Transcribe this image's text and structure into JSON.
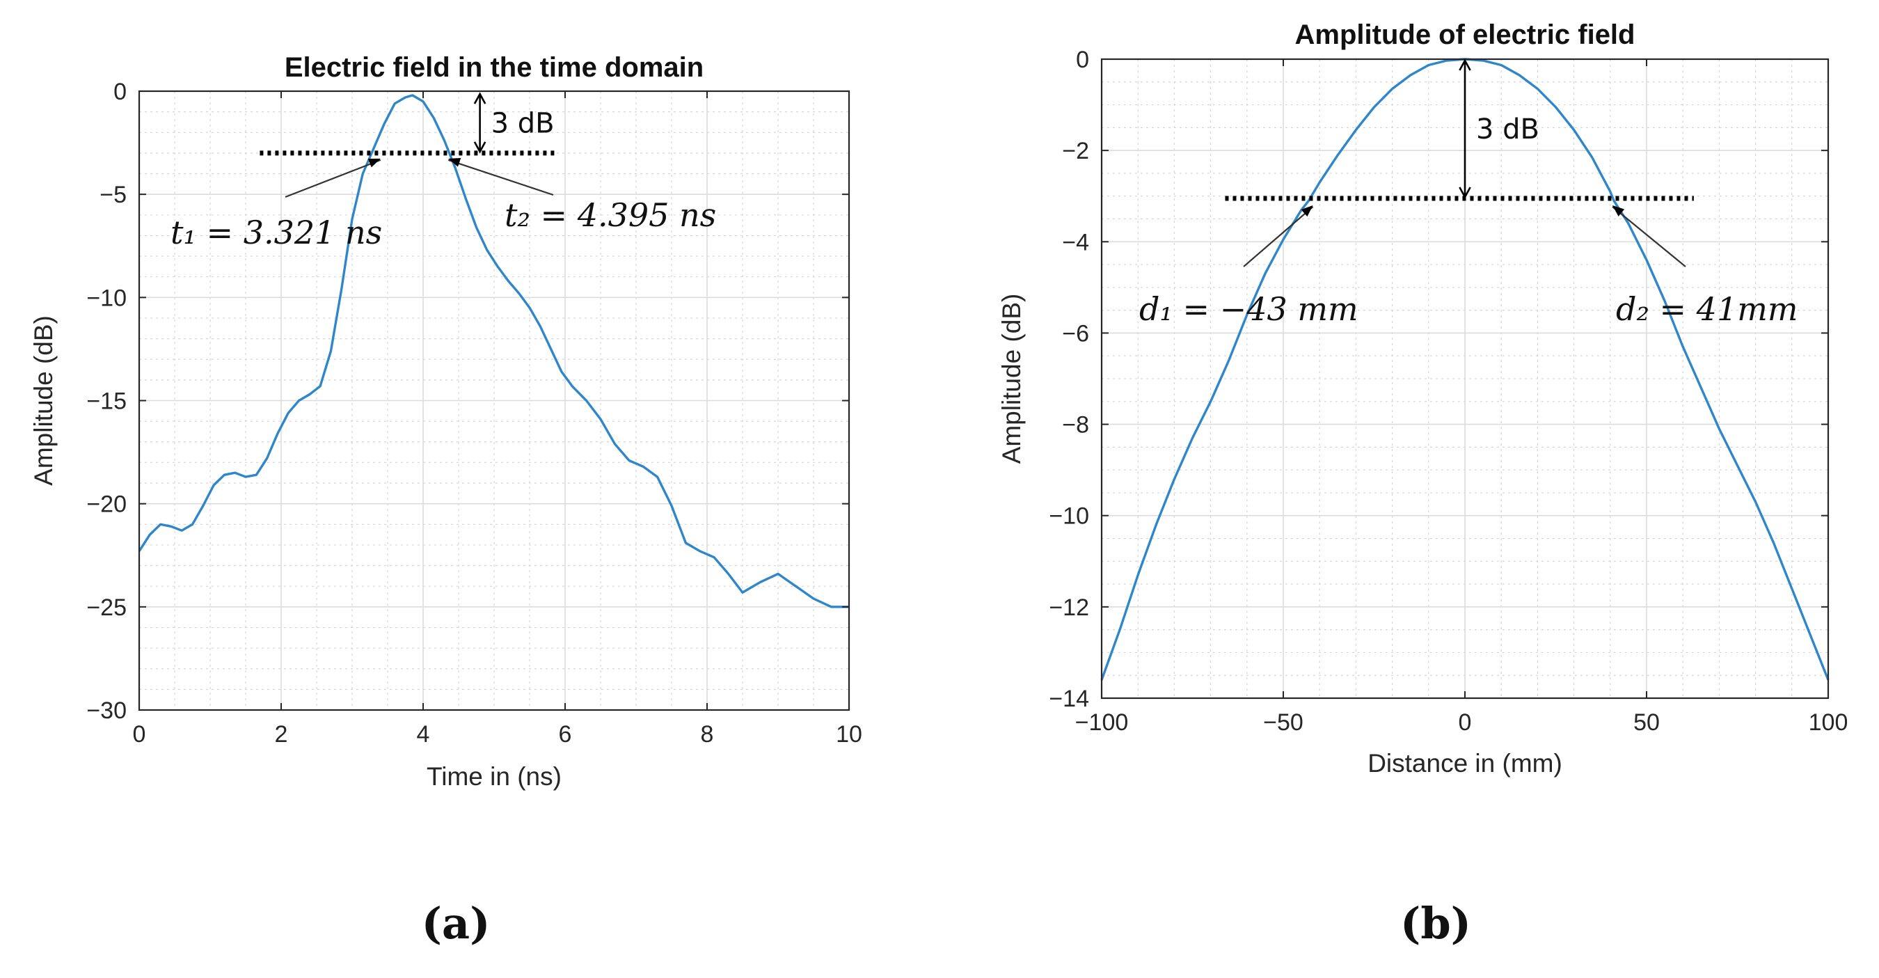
{
  "chart_data": [
    {
      "type": "line",
      "title": "Electric field in the time domain",
      "xlabel": "Time in (ns)",
      "ylabel": "Amplitude (dB)",
      "xlim": [
        0,
        10
      ],
      "ylim": [
        -30,
        0
      ],
      "xticks": [
        0,
        2,
        4,
        6,
        8,
        10
      ],
      "yticks": [
        0,
        -5,
        -10,
        -15,
        -20,
        -25,
        -30
      ],
      "xtick_labels": [
        "0",
        "2",
        "4",
        "6",
        "8",
        "10"
      ],
      "ytick_labels": [
        "0",
        "−5",
        "−10",
        "−15",
        "−20",
        "−25",
        "−30"
      ],
      "grid": true,
      "series": [
        {
          "name": "Electric field",
          "color": "#2f86c9",
          "x": [
            0,
            0.15,
            0.3,
            0.45,
            0.6,
            0.75,
            0.9,
            1.05,
            1.2,
            1.35,
            1.5,
            1.65,
            1.8,
            1.95,
            2.1,
            2.25,
            2.4,
            2.55,
            2.7,
            2.85,
            3.0,
            3.15,
            3.3,
            3.45,
            3.6,
            3.75,
            3.85,
            4.0,
            4.15,
            4.3,
            4.45,
            4.6,
            4.75,
            4.9,
            5.05,
            5.2,
            5.35,
            5.5,
            5.65,
            5.8,
            5.95,
            6.1,
            6.3,
            6.5,
            6.7,
            6.9,
            7.1,
            7.3,
            7.5,
            7.7,
            7.9,
            8.1,
            8.3,
            8.5,
            8.75,
            9.0,
            9.25,
            9.5,
            9.75,
            10
          ],
          "y": [
            -22.3,
            -21.5,
            -21.0,
            -21.1,
            -21.3,
            -21.0,
            -20.1,
            -19.1,
            -18.6,
            -18.5,
            -18.7,
            -18.6,
            -17.8,
            -16.6,
            -15.6,
            -15.0,
            -14.7,
            -14.3,
            -12.6,
            -9.6,
            -6.2,
            -4.0,
            -2.8,
            -1.6,
            -0.6,
            -0.3,
            -0.2,
            -0.5,
            -1.3,
            -2.4,
            -3.7,
            -5.2,
            -6.6,
            -7.7,
            -8.5,
            -9.2,
            -9.8,
            -10.5,
            -11.4,
            -12.5,
            -13.6,
            -14.3,
            -15.0,
            -15.9,
            -17.1,
            -17.9,
            -18.2,
            -18.7,
            -20.1,
            -21.9,
            -22.3,
            -22.6,
            -23.4,
            -24.3,
            -23.8,
            -23.4,
            -24.0,
            -24.6,
            -25.0,
            -25.0
          ]
        }
      ],
      "annotations": {
        "db_label": "3 dB",
        "level_db": -3,
        "level_x": [
          1.7,
          5.85
        ],
        "arrow_x": 4.8,
        "arrow_y": [
          0,
          -3
        ],
        "t1_label": "t₁ = 3.321 ns",
        "t2_label": "t₂ = 4.395 ns",
        "t1_x": 3.321,
        "t2_x": 4.395
      },
      "panel_label": "(a)"
    },
    {
      "type": "line",
      "title": "Amplitude of electric field",
      "xlabel": "Distance in (mm)",
      "ylabel": "Amplitude (dB)",
      "xlim": [
        -100,
        100
      ],
      "ylim": [
        -14,
        0
      ],
      "xticks": [
        -100,
        -50,
        0,
        50,
        100
      ],
      "yticks": [
        0,
        -2,
        -4,
        -6,
        -8,
        -10,
        -12,
        -14
      ],
      "xtick_labels": [
        "−100",
        "−50",
        "0",
        "50",
        "100"
      ],
      "ytick_labels": [
        "0",
        "−2",
        "−4",
        "−6",
        "−8",
        "−10",
        "−12",
        "−14"
      ],
      "grid": true,
      "series": [
        {
          "name": "Amplitude",
          "color": "#2f86c9",
          "x": [
            -100,
            -95,
            -90,
            -85,
            -80,
            -75,
            -70,
            -65,
            -60,
            -55,
            -50,
            -45,
            -43,
            -40,
            -35,
            -30,
            -25,
            -20,
            -15,
            -10,
            -5,
            0,
            5,
            10,
            15,
            20,
            25,
            30,
            35,
            40,
            41,
            45,
            50,
            55,
            60,
            65,
            70,
            75,
            80,
            85,
            90,
            95,
            100
          ],
          "y": [
            -13.6,
            -12.5,
            -11.3,
            -10.2,
            -9.2,
            -8.3,
            -7.5,
            -6.6,
            -5.6,
            -4.7,
            -3.95,
            -3.3,
            -3.1,
            -2.7,
            -2.1,
            -1.55,
            -1.05,
            -0.65,
            -0.35,
            -0.13,
            -0.03,
            0.0,
            -0.03,
            -0.13,
            -0.35,
            -0.65,
            -1.05,
            -1.55,
            -2.15,
            -2.9,
            -3.1,
            -3.6,
            -4.4,
            -5.3,
            -6.3,
            -7.2,
            -8.1,
            -8.9,
            -9.7,
            -10.6,
            -11.6,
            -12.6,
            -13.6
          ]
        }
      ],
      "annotations": {
        "db_label": "3 dB",
        "level_db": -3.05,
        "level_x": [
          -66,
          63
        ],
        "arrow_x": 0,
        "arrow_y": [
          0,
          -3.05
        ],
        "d1_label": "d₁ = −43 mm",
        "d2_label": "d₂ = 41mm",
        "d1_x": -43,
        "d2_x": 41
      },
      "panel_label": "(b)"
    }
  ]
}
